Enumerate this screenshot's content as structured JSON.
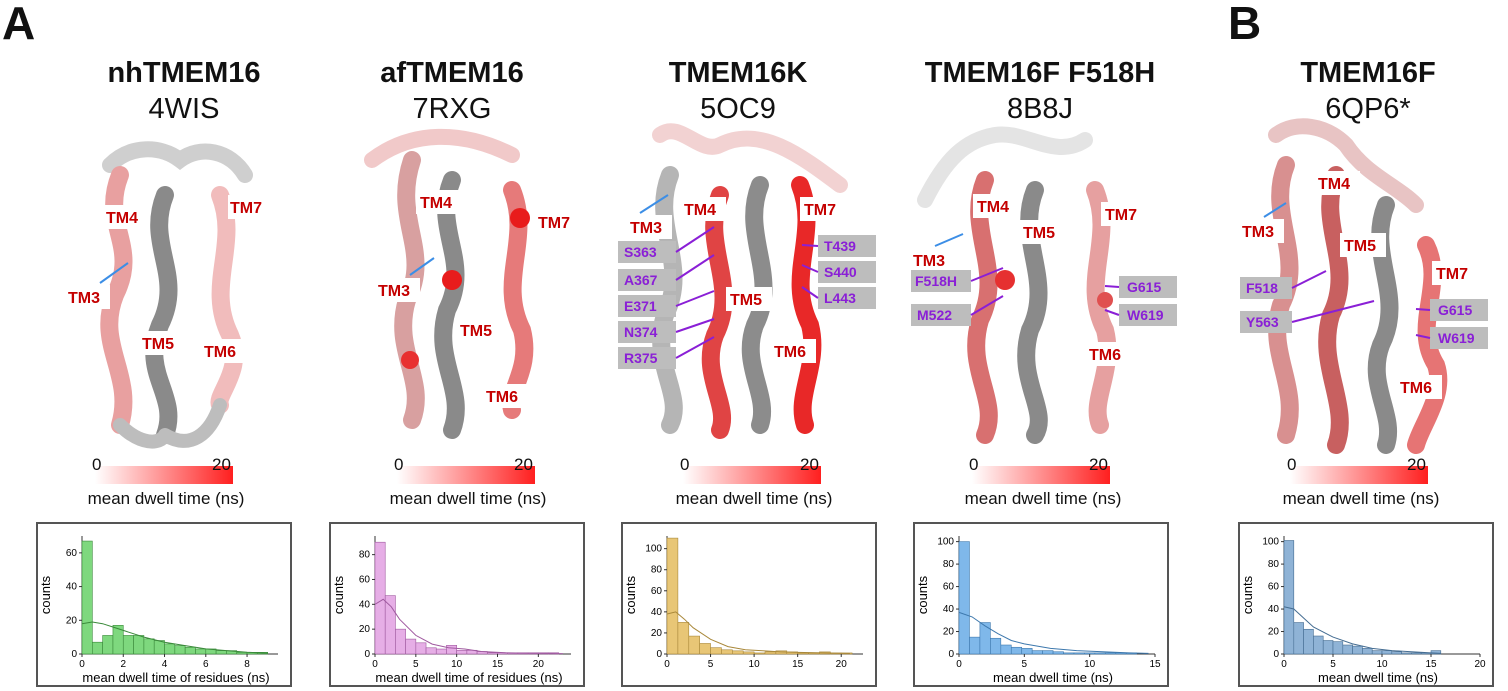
{
  "panel_letters": {
    "a": "A",
    "b": "B"
  },
  "colorbar": {
    "min": "0",
    "max": "20",
    "label": "mean dwell time (ns)",
    "low_color": "#ffffff",
    "high_color": "#ff1f1f"
  },
  "panels": [
    {
      "title": "nhTMEM16",
      "pdb": "4WIS",
      "helix_labels": [
        "TM4",
        "TM7",
        "TM3",
        "TM5",
        "TM6"
      ],
      "residues": []
    },
    {
      "title": "afTMEM16",
      "pdb": "7RXG",
      "helix_labels": [
        "TM4",
        "TM7",
        "TM3",
        "TM5",
        "TM6"
      ],
      "residues": []
    },
    {
      "title": "TMEM16K",
      "pdb": "5OC9",
      "helix_labels": [
        "TM3",
        "TM4",
        "TM7",
        "TM5",
        "TM6"
      ],
      "residues": [
        "S363",
        "A367",
        "E371",
        "N374",
        "R375",
        "T439",
        "S440",
        "L443"
      ]
    },
    {
      "title": "TMEM16F F518H",
      "pdb": "8B8J",
      "helix_labels": [
        "TM4",
        "TM5",
        "TM7",
        "TM3",
        "TM6"
      ],
      "residues": [
        "F518H",
        "M522",
        "G615",
        "W619"
      ]
    },
    {
      "title": "TMEM16F",
      "pdb": "6QP6*",
      "helix_labels": [
        "TM4",
        "TM3",
        "TM5",
        "TM7",
        "TM6"
      ],
      "residues": [
        "F518",
        "Y563",
        "G615",
        "W619"
      ]
    }
  ],
  "chart_data": [
    {
      "type": "bar",
      "xlabel": "mean dwell time of residues (ns)",
      "ylabel": "counts",
      "xlim": [
        0,
        9.5
      ],
      "ylim": [
        0,
        70
      ],
      "xticks": [
        0,
        2,
        4,
        6,
        8
      ],
      "yticks": [
        0,
        20,
        40,
        60
      ],
      "bin_width": 0.5,
      "bin_start": 0,
      "values": [
        67,
        7,
        11,
        17,
        11,
        11,
        9,
        8,
        6,
        5,
        4,
        3,
        3,
        2,
        2,
        1,
        1,
        1
      ],
      "kde": [
        [
          0,
          18
        ],
        [
          0.5,
          19
        ],
        [
          1,
          18
        ],
        [
          1.5,
          16
        ],
        [
          2,
          14
        ],
        [
          3,
          10
        ],
        [
          4,
          7
        ],
        [
          5,
          5
        ],
        [
          6,
          3
        ],
        [
          7,
          2
        ],
        [
          8,
          1
        ],
        [
          9,
          0.5
        ]
      ],
      "color": "#7ed87e",
      "edge": "#3a8a3a"
    },
    {
      "type": "bar",
      "xlabel": "mean dwell time of residues (ns)",
      "ylabel": "counts",
      "xlim": [
        0,
        24
      ],
      "ylim": [
        0,
        95
      ],
      "xticks": [
        0,
        5,
        10,
        15,
        20
      ],
      "yticks": [
        0,
        20,
        40,
        60,
        80
      ],
      "bin_width": 1.25,
      "bin_start": 0,
      "values": [
        90,
        47,
        20,
        12,
        9,
        5,
        4,
        7,
        3,
        3,
        2,
        1,
        1,
        1,
        1,
        1,
        1,
        1
      ],
      "kde": [
        [
          0,
          40
        ],
        [
          1,
          44
        ],
        [
          2,
          38
        ],
        [
          3,
          28
        ],
        [
          5,
          15
        ],
        [
          7,
          8
        ],
        [
          9,
          5
        ],
        [
          11,
          4
        ],
        [
          13,
          2
        ],
        [
          16,
          1
        ],
        [
          20,
          0.5
        ],
        [
          23,
          0.3
        ]
      ],
      "color": "#e6aee6",
      "edge": "#a05aa0"
    },
    {
      "type": "bar",
      "xlabel": "",
      "ylabel": "counts",
      "xlim": [
        0,
        22.5
      ],
      "ylim": [
        0,
        112
      ],
      "xticks": [
        0,
        5,
        10,
        15,
        20
      ],
      "yticks": [
        0,
        20,
        40,
        60,
        80,
        100
      ],
      "bin_width": 1.25,
      "bin_start": 0,
      "values": [
        110,
        30,
        17,
        10,
        6,
        4,
        3,
        2,
        1,
        2,
        3,
        2,
        1,
        1,
        2,
        1,
        1
      ],
      "kde": [
        [
          0,
          38
        ],
        [
          1,
          40
        ],
        [
          2,
          33
        ],
        [
          3,
          25
        ],
        [
          5,
          14
        ],
        [
          7,
          7
        ],
        [
          9,
          4
        ],
        [
          11,
          3
        ],
        [
          13,
          2
        ],
        [
          15,
          1.5
        ],
        [
          18,
          1
        ],
        [
          21,
          0.5
        ]
      ],
      "color": "#e8c676",
      "edge": "#a9883a"
    },
    {
      "type": "bar",
      "xlabel": "mean dwell time (ns)",
      "ylabel": "counts",
      "xlim": [
        0,
        15
      ],
      "ylim": [
        0,
        105
      ],
      "xticks": [
        0,
        5,
        10,
        15
      ],
      "yticks": [
        0,
        20,
        40,
        60,
        80,
        100
      ],
      "bin_width": 0.8,
      "bin_start": 0,
      "values": [
        100,
        15,
        28,
        14,
        8,
        6,
        5,
        3,
        3,
        2,
        1,
        1,
        1,
        1,
        1,
        1,
        1
      ],
      "kde": [
        [
          0,
          37
        ],
        [
          1,
          33
        ],
        [
          2,
          25
        ],
        [
          3,
          18
        ],
        [
          4,
          12
        ],
        [
          5,
          9
        ],
        [
          7,
          5
        ],
        [
          9,
          3
        ],
        [
          11,
          2
        ],
        [
          13,
          1
        ],
        [
          14.5,
          0.5
        ]
      ],
      "color": "#7fb8ea",
      "edge": "#3d78ad"
    },
    {
      "type": "bar",
      "xlabel": "mean dwell time (ns)",
      "ylabel": "counts",
      "xlim": [
        0,
        20
      ],
      "ylim": [
        0,
        105
      ],
      "xticks": [
        0,
        5,
        10,
        15,
        20
      ],
      "yticks": [
        0,
        20,
        40,
        60,
        80,
        100
      ],
      "bin_width": 1.0,
      "bin_start": 0,
      "values": [
        101,
        28,
        22,
        16,
        12,
        11,
        8,
        7,
        5,
        3,
        3,
        2,
        1,
        1,
        1,
        3
      ],
      "kde": [
        [
          0,
          42
        ],
        [
          1,
          40
        ],
        [
          2,
          32
        ],
        [
          3,
          24
        ],
        [
          5,
          15
        ],
        [
          7,
          9
        ],
        [
          9,
          5
        ],
        [
          11,
          3
        ],
        [
          13,
          2
        ],
        [
          15,
          1
        ],
        [
          16,
          0.5
        ]
      ],
      "color": "#8fb3d6",
      "edge": "#456d92"
    }
  ]
}
